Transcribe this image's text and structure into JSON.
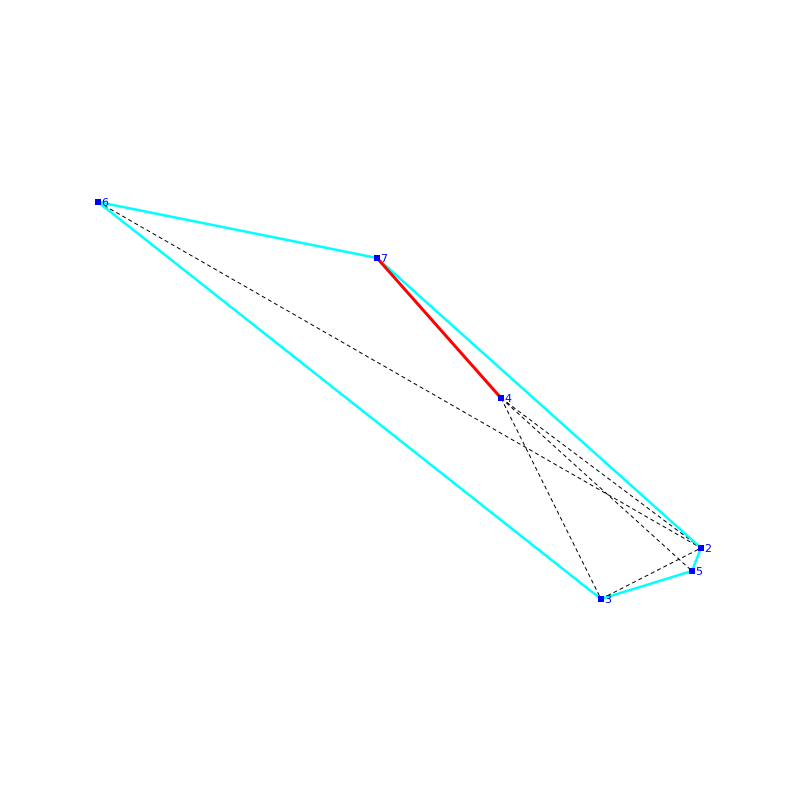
{
  "nodes": [
    {
      "label": "6"
    },
    {
      "label": "7"
    },
    {
      "label": "4"
    },
    {
      "label": "2"
    },
    {
      "label": "5"
    },
    {
      "label": "3"
    }
  ]
}
